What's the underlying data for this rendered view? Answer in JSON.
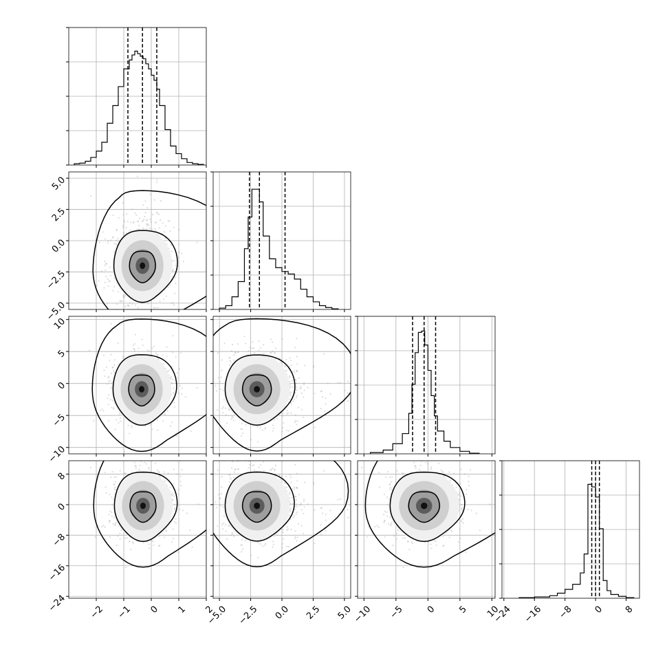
{
  "chart_data": {
    "type": "corner",
    "parameters": 4,
    "grid": true,
    "colors": {
      "line": "#000000",
      "grid": "#b0b0b0",
      "points": "#9a9a9a"
    },
    "axes": [
      {
        "range": [
          -3.0,
          2.0
        ],
        "ticks": [
          -2,
          -1,
          0,
          1,
          2
        ],
        "tick_labels": [
          "−2",
          "−1",
          "0",
          "1",
          "2"
        ]
      },
      {
        "range": [
          -5.5,
          5.5
        ],
        "ticks": [
          -5.0,
          -2.5,
          0.0,
          2.5,
          5.0
        ],
        "tick_labels": [
          "−5.0",
          "−2.5",
          "0.0",
          "2.5",
          "5.0"
        ]
      },
      {
        "range": [
          -11,
          10.5
        ],
        "ticks": [
          -10,
          -5,
          0,
          5,
          10
        ],
        "tick_labels": [
          "−10",
          "−5",
          "0",
          "5",
          "10"
        ]
      },
      {
        "range": [
          -24.5,
          11.5
        ],
        "ticks": [
          -24,
          -16,
          -8,
          0,
          8
        ],
        "tick_labels": [
          "−24",
          "−16",
          "−8",
          "0",
          "8"
        ]
      }
    ],
    "histograms": [
      {
        "edges": [
          -2.8,
          -2.6,
          -2.4,
          -2.2,
          -2.0,
          -1.8,
          -1.6,
          -1.4,
          -1.2,
          -1.0,
          -0.8,
          -0.7,
          -0.6,
          -0.5,
          -0.4,
          -0.3,
          -0.2,
          -0.1,
          0.0,
          0.1,
          0.2,
          0.3,
          0.5,
          0.7,
          0.9,
          1.1,
          1.3,
          1.5,
          1.7,
          1.9
        ],
        "counts": [
          0.01,
          0.015,
          0.03,
          0.06,
          0.11,
          0.18,
          0.33,
          0.47,
          0.62,
          0.76,
          0.83,
          0.87,
          0.9,
          0.88,
          0.86,
          0.84,
          0.8,
          0.76,
          0.71,
          0.67,
          0.6,
          0.47,
          0.28,
          0.15,
          0.09,
          0.05,
          0.02,
          0.01,
          0.005
        ],
        "quantiles": [
          -0.85,
          -0.32,
          0.2
        ]
      },
      {
        "edges": [
          -5.0,
          -4.5,
          -4.0,
          -3.5,
          -3.0,
          -2.7,
          -2.4,
          -2.1,
          -1.8,
          -1.5,
          -1.0,
          -0.5,
          0.0,
          0.5,
          1.0,
          1.5,
          2.0,
          2.5,
          3.0,
          3.5,
          4.0,
          4.5
        ],
        "counts": [
          0.01,
          0.03,
          0.1,
          0.22,
          0.48,
          0.73,
          0.95,
          0.95,
          0.85,
          0.58,
          0.4,
          0.33,
          0.3,
          0.28,
          0.24,
          0.16,
          0.1,
          0.06,
          0.03,
          0.015,
          0.005
        ],
        "quantiles": [
          -2.6,
          -1.8,
          0.25
        ]
      },
      {
        "edges": [
          -9,
          -7,
          -5.5,
          -4,
          -3,
          -2.5,
          -2,
          -1.5,
          -1,
          -0.5,
          0,
          0.5,
          1,
          1.5,
          2.5,
          3.5,
          5,
          6.5,
          8
        ],
        "counts": [
          0.01,
          0.03,
          0.08,
          0.16,
          0.32,
          0.55,
          0.8,
          0.96,
          0.97,
          0.86,
          0.66,
          0.46,
          0.3,
          0.18,
          0.1,
          0.05,
          0.02,
          0.005
        ],
        "quantiles": [
          -2.4,
          -0.6,
          1.2
        ]
      },
      {
        "edges": [
          -20,
          -16,
          -12,
          -10,
          -8,
          -6,
          -4,
          -3,
          -2,
          -1,
          0,
          1,
          2,
          3,
          4,
          6,
          8,
          10
        ],
        "counts": [
          0.005,
          0.01,
          0.02,
          0.04,
          0.07,
          0.11,
          0.2,
          0.35,
          0.9,
          0.88,
          0.8,
          0.55,
          0.14,
          0.06,
          0.03,
          0.015,
          0.005
        ],
        "quantiles": [
          -1.0,
          0.0,
          1.0
        ]
      }
    ],
    "pairs": [
      {
        "x": 0,
        "y": 1,
        "center": [
          -0.32,
          -2.0
        ],
        "spread": [
          0.45,
          1.2
        ],
        "contours": [
          [
            0.25,
            0.55,
            0,
            0.0
          ],
          [
            0.55,
            0.4,
            0.25,
            0.0
          ],
          [
            0.95,
            0.4,
            1.05,
            -0.18
          ]
        ],
        "tail": [
          0.0,
          1.8
        ]
      },
      {
        "x": 0,
        "y": 2,
        "center": [
          -0.35,
          -0.9
        ],
        "spread": [
          0.45,
          2.3
        ],
        "contours": [
          [
            0.25,
            0.55,
            0,
            0.0
          ],
          [
            0.55,
            0.4,
            0.25,
            0.0
          ],
          [
            0.95,
            0.4,
            0.85,
            0.0
          ]
        ],
        "tail": [
          0.0,
          0.0
        ]
      },
      {
        "x": 1,
        "y": 2,
        "center": [
          -2.0,
          -0.9
        ],
        "spread": [
          1.1,
          2.3
        ],
        "contours": [
          [
            0.25,
            0.5,
            0,
            0.0
          ],
          [
            0.55,
            0.38,
            0.22,
            0.0
          ],
          [
            0.95,
            0.36,
            0.85,
            0.45
          ]
        ],
        "tail": [
          1.8,
          0.0
        ]
      },
      {
        "x": 0,
        "y": 3,
        "center": [
          -0.3,
          -0.3
        ],
        "spread": [
          0.45,
          3.8
        ],
        "contours": [
          [
            0.25,
            0.55,
            0,
            0.0
          ],
          [
            0.55,
            0.42,
            0.22,
            0.0
          ],
          [
            0.95,
            0.4,
            0.75,
            0.0
          ]
        ],
        "tail": [
          0.0,
          0.0
        ]
      },
      {
        "x": 1,
        "y": 3,
        "center": [
          -2.0,
          -0.3
        ],
        "spread": [
          1.1,
          3.8
        ],
        "contours": [
          [
            0.25,
            0.5,
            0,
            0.0
          ],
          [
            0.55,
            0.36,
            0.2,
            0.0
          ],
          [
            0.95,
            0.36,
            0.7,
            0.4
          ]
        ],
        "tail": [
          1.8,
          0.0
        ]
      },
      {
        "x": 2,
        "y": 3,
        "center": [
          -0.6,
          -0.3
        ],
        "spread": [
          2.3,
          3.8
        ],
        "contours": [
          [
            0.25,
            0.55,
            0,
            0.0
          ],
          [
            0.55,
            0.42,
            0.22,
            0.0
          ],
          [
            0.95,
            0.4,
            0.75,
            0.0
          ]
        ],
        "tail": [
          0.0,
          0.0
        ]
      }
    ]
  }
}
